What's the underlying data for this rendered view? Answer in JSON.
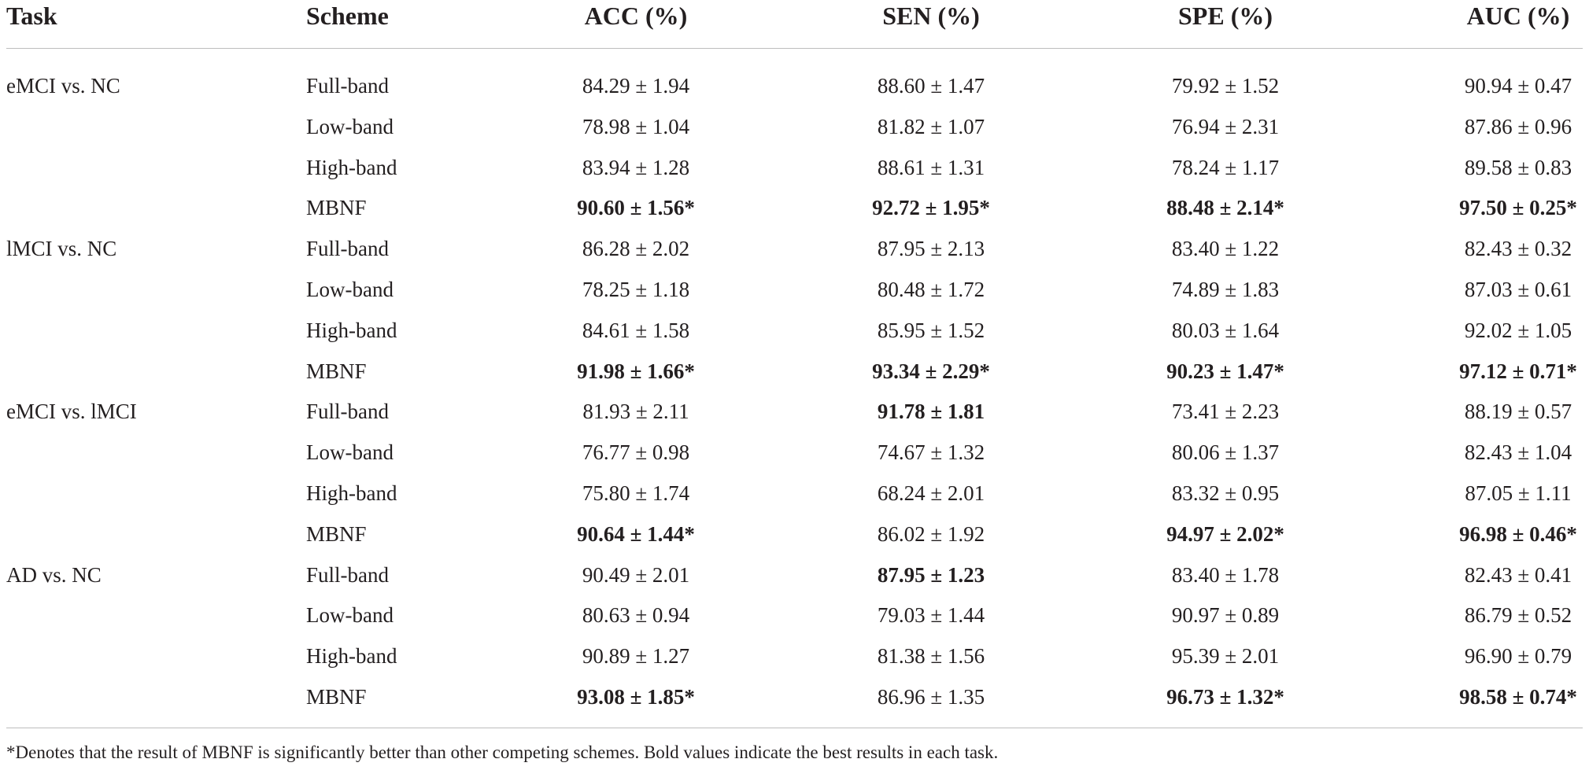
{
  "headers": {
    "task": "Task",
    "scheme": "Scheme",
    "acc": "ACC (%)",
    "sen": "SEN (%)",
    "spe": "SPE (%)",
    "auc": "AUC (%)"
  },
  "rows": [
    {
      "task": "eMCI vs. NC",
      "scheme": "Full-band",
      "acc": "84.29 ± 1.94",
      "sen": "88.60 ± 1.47",
      "spe": "79.92 ± 1.52",
      "auc": "90.94 ± 0.47",
      "bold": []
    },
    {
      "task": "",
      "scheme": "Low-band",
      "acc": "78.98 ± 1.04",
      "sen": "81.82 ± 1.07",
      "spe": "76.94 ± 2.31",
      "auc": "87.86 ± 0.96",
      "bold": []
    },
    {
      "task": "",
      "scheme": "High-band",
      "acc": "83.94 ± 1.28",
      "sen": "88.61 ± 1.31",
      "spe": "78.24 ± 1.17",
      "auc": "89.58 ± 0.83",
      "bold": []
    },
    {
      "task": "",
      "scheme": "MBNF",
      "acc": "90.60 ± 1.56*",
      "sen": "92.72 ± 1.95*",
      "spe": "88.48 ± 2.14*",
      "auc": "97.50 ± 0.25*",
      "bold": [
        "acc",
        "sen",
        "spe",
        "auc"
      ]
    },
    {
      "task": "lMCI vs. NC",
      "scheme": "Full-band",
      "acc": "86.28 ± 2.02",
      "sen": "87.95 ± 2.13",
      "spe": "83.40 ± 1.22",
      "auc": "82.43 ± 0.32",
      "bold": []
    },
    {
      "task": "",
      "scheme": "Low-band",
      "acc": "78.25 ± 1.18",
      "sen": "80.48 ± 1.72",
      "spe": "74.89 ± 1.83",
      "auc": "87.03 ± 0.61",
      "bold": []
    },
    {
      "task": "",
      "scheme": "High-band",
      "acc": "84.61 ± 1.58",
      "sen": "85.95 ± 1.52",
      "spe": "80.03 ± 1.64",
      "auc": "92.02 ± 1.05",
      "bold": []
    },
    {
      "task": "",
      "scheme": "MBNF",
      "acc": "91.98 ± 1.66*",
      "sen": "93.34 ± 2.29*",
      "spe": "90.23 ± 1.47*",
      "auc": "97.12 ± 0.71*",
      "bold": [
        "acc",
        "sen",
        "spe",
        "auc"
      ]
    },
    {
      "task": "eMCI vs. lMCI",
      "scheme": "Full-band",
      "acc": "81.93 ± 2.11",
      "sen": "91.78 ± 1.81",
      "spe": "73.41 ± 2.23",
      "auc": "88.19 ± 0.57",
      "bold": [
        "sen"
      ]
    },
    {
      "task": "",
      "scheme": "Low-band",
      "acc": "76.77 ± 0.98",
      "sen": "74.67 ± 1.32",
      "spe": "80.06 ± 1.37",
      "auc": "82.43 ± 1.04",
      "bold": []
    },
    {
      "task": "",
      "scheme": "High-band",
      "acc": "75.80 ± 1.74",
      "sen": "68.24 ± 2.01",
      "spe": "83.32 ± 0.95",
      "auc": "87.05 ± 1.11",
      "bold": []
    },
    {
      "task": "",
      "scheme": "MBNF",
      "acc": "90.64 ± 1.44*",
      "sen": "86.02 ± 1.92",
      "spe": "94.97 ± 2.02*",
      "auc": "96.98 ± 0.46*",
      "bold": [
        "acc",
        "spe",
        "auc"
      ]
    },
    {
      "task": "AD vs. NC",
      "scheme": "Full-band",
      "acc": "90.49 ± 2.01",
      "sen": "87.95 ± 1.23",
      "spe": "83.40 ± 1.78",
      "auc": "82.43 ± 0.41",
      "bold": [
        "sen"
      ]
    },
    {
      "task": "",
      "scheme": "Low-band",
      "acc": "80.63 ± 0.94",
      "sen": "79.03 ± 1.44",
      "spe": "90.97 ± 0.89",
      "auc": "86.79 ± 0.52",
      "bold": []
    },
    {
      "task": "",
      "scheme": "High-band",
      "acc": "90.89 ± 1.27",
      "sen": "81.38 ± 1.56",
      "spe": "95.39 ± 2.01",
      "auc": "96.90 ± 0.79",
      "bold": []
    },
    {
      "task": "",
      "scheme": "MBNF",
      "acc": "93.08 ± 1.85*",
      "sen": "86.96 ± 1.35",
      "spe": "96.73 ± 1.32*",
      "auc": "98.58 ± 0.74*",
      "bold": [
        "acc",
        "spe",
        "auc"
      ]
    }
  ],
  "footnote": "*Denotes that the result of MBNF is significantly better than other competing schemes. Bold values indicate the best results in each task."
}
